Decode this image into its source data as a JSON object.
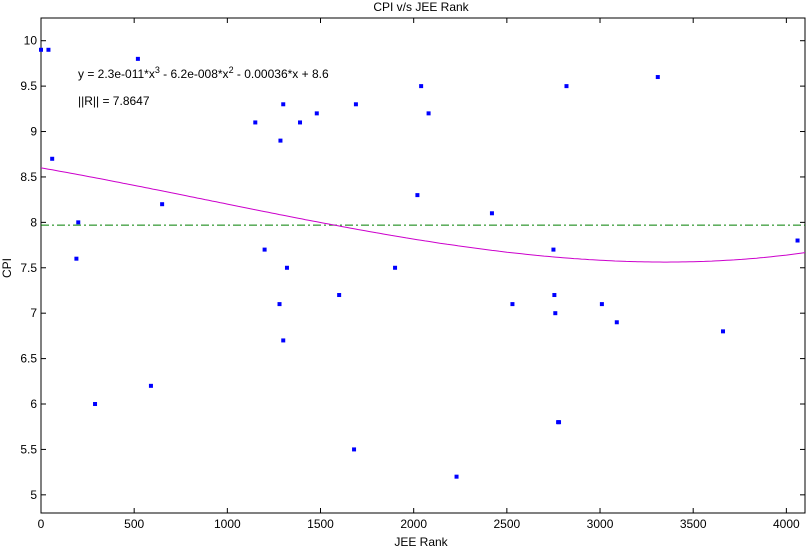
{
  "chart_data": {
    "type": "scatter",
    "title": "CPI v/s JEE Rank",
    "xlabel": "JEE Rank",
    "ylabel": "CPI",
    "xlim": [
      0,
      4100
    ],
    "ylim": [
      4.8,
      10.25
    ],
    "xticks": [
      "0",
      "500",
      "1000",
      "1500",
      "2000",
      "2500",
      "3000",
      "3500",
      "4000"
    ],
    "yticks": [
      "5",
      "5.5",
      "6",
      "6.5",
      "7",
      "7.5",
      "8",
      "8.5",
      "9",
      "9.5",
      "10"
    ],
    "grid": false,
    "series": [
      {
        "x": [
          0,
          40,
          60,
          190,
          200,
          290,
          520,
          590,
          650,
          1150,
          1200,
          1280,
          1285,
          1300,
          1300,
          1320,
          1390,
          1480,
          1600,
          1680,
          1690,
          1900,
          2020,
          2040,
          2080,
          2230,
          2420,
          2530,
          2750,
          2755,
          2760,
          2775,
          2780,
          2820,
          3010,
          3090,
          3310,
          3660,
          4060
        ],
        "values": [
          9.9,
          9.9,
          8.7,
          7.6,
          8.0,
          6.0,
          9.8,
          6.2,
          8.2,
          9.1,
          7.7,
          7.1,
          8.9,
          9.3,
          6.7,
          7.5,
          9.1,
          9.2,
          7.2,
          5.5,
          9.3,
          7.5,
          8.3,
          9.5,
          9.2,
          5.2,
          8.1,
          7.1,
          7.7,
          7.2,
          7.0,
          5.8,
          5.8,
          9.5,
          7.1,
          6.9,
          9.6,
          6.8,
          7.8
        ],
        "color": "#0000ff"
      }
    ],
    "fit": {
      "equation_prefix": "y = 2.3e-011*x",
      "equation_exp1": "3",
      "equation_mid": " - 6.2e-008*x",
      "equation_exp2": "2",
      "equation_suffix": " - 0.00036*x + 8.6",
      "norm_label": "||R|| = 7.8647",
      "coefficients": [
        2.3e-11,
        -6.2e-08,
        -0.00036,
        8.6
      ],
      "color": "#cc00cc"
    },
    "mean_line": {
      "value": 7.97,
      "color": "#007f00",
      "style": "dash-dot"
    }
  }
}
